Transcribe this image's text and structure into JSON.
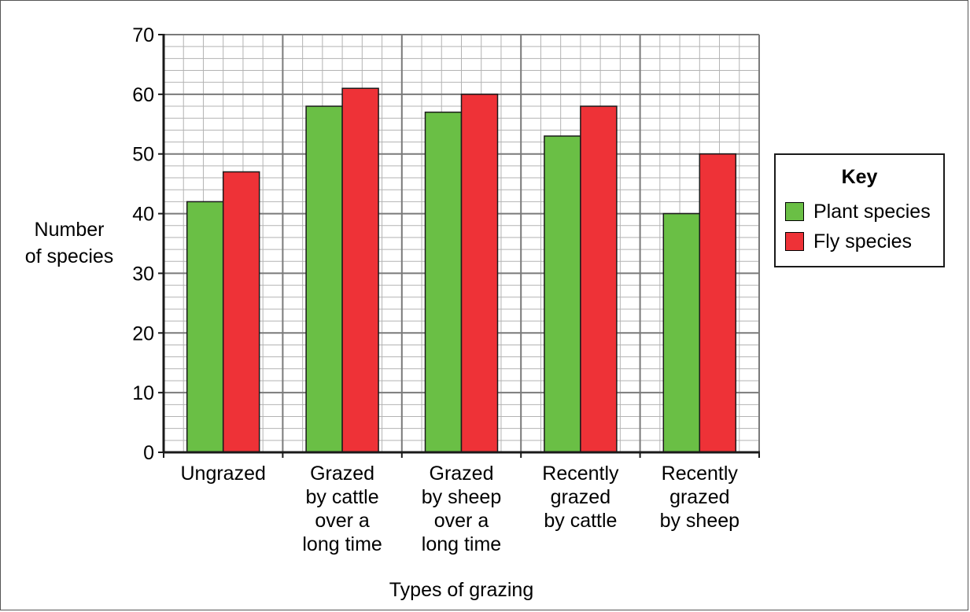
{
  "chart_data": {
    "type": "bar",
    "xlabel": "Types of grazing",
    "ylabel": [
      "Number",
      "of species"
    ],
    "ylim": [
      0,
      70
    ],
    "y_major_step": 10,
    "y_minor_step": 2,
    "grid": true,
    "legend_position": "right",
    "legend_title": "Key",
    "categories": [
      [
        "Ungrazed"
      ],
      [
        "Grazed",
        "by cattle",
        "over a",
        "long time"
      ],
      [
        "Grazed",
        "by sheep",
        "over a",
        "long time"
      ],
      [
        "Recently",
        "grazed",
        "by cattle"
      ],
      [
        "Recently",
        "grazed",
        "by sheep"
      ]
    ],
    "series": [
      {
        "name": "Plant species",
        "color": "#6abf45",
        "values": [
          42,
          58,
          57,
          53,
          40
        ]
      },
      {
        "name": "Fly species",
        "color": "#ee3237",
        "values": [
          47,
          61,
          60,
          58,
          50
        ]
      }
    ],
    "yticks": [
      0,
      10,
      20,
      30,
      40,
      50,
      60,
      70
    ]
  }
}
